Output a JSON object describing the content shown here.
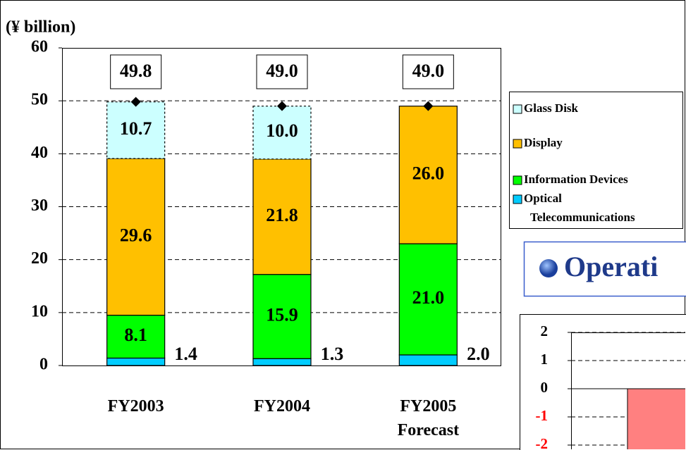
{
  "chart_data": [
    {
      "type": "stacked_bar",
      "y_label": "(¥ billion)",
      "categories": [
        "FY2003",
        "FY2004",
        "FY2005 Forecast"
      ],
      "series": [
        {
          "name": "Optical Telecommunications",
          "color": "#00ccff",
          "values": [
            1.4,
            1.3,
            2.0
          ],
          "value_labels": [
            "1.4",
            "1.3",
            "2.0"
          ]
        },
        {
          "name": "Information Devices",
          "color": "#00ff00",
          "values": [
            8.1,
            15.9,
            21.0
          ],
          "value_labels": [
            "8.1",
            "15.9",
            "21.0"
          ]
        },
        {
          "name": "Display",
          "color": "#ffc000",
          "values": [
            29.6,
            21.8,
            26.0
          ],
          "value_labels": [
            "29.6",
            "21.8",
            "26.0"
          ]
        },
        {
          "name": "Glass Disk",
          "color": "#ccffff",
          "values": [
            10.7,
            10.0,
            null
          ],
          "value_labels": [
            "10.7",
            "10.0",
            null
          ]
        }
      ],
      "totals": [
        49.8,
        49.0,
        49.0
      ],
      "total_labels": [
        "49.8",
        "49.0",
        "49.0"
      ],
      "ylim": [
        0,
        60
      ],
      "yticks": [
        0,
        10,
        20,
        30,
        40,
        50,
        60
      ],
      "grid": true
    },
    {
      "type": "bar",
      "title": "Operati",
      "values": [
        -2.5
      ],
      "color": "#ff8080",
      "ylim": [
        -2.2,
        2
      ],
      "yticks": [
        2,
        1,
        0,
        -1,
        -2
      ],
      "negative_tick_color": "#ff0000",
      "grid": true
    }
  ]
}
